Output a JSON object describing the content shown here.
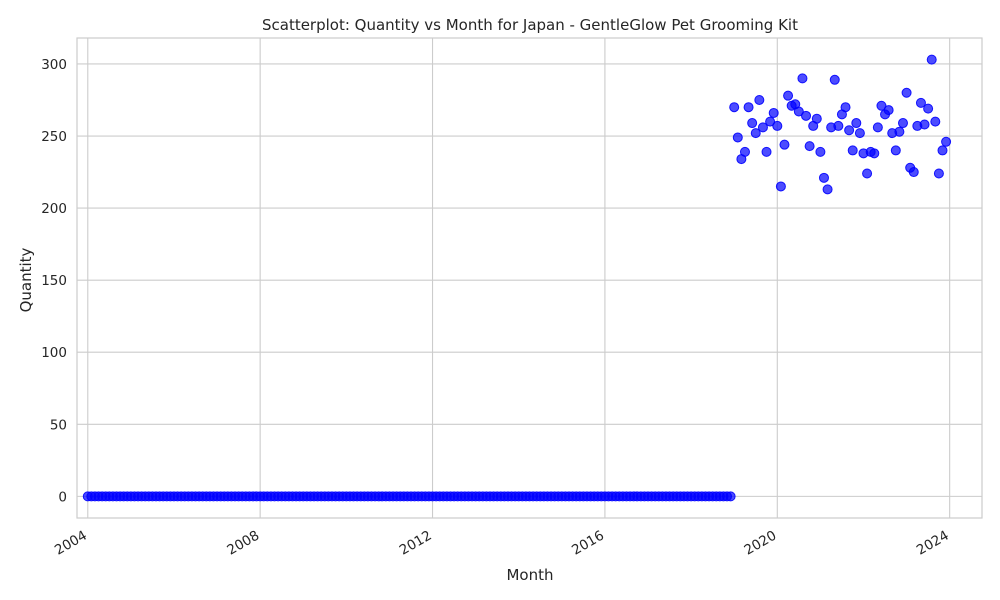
{
  "chart_data": {
    "type": "scatter",
    "title": "Scatterplot: Quantity vs Month for Japan - GentleGlow Pet Grooming Kit",
    "xlabel": "Month",
    "ylabel": "Quantity",
    "x_ticks": [
      "2004",
      "2008",
      "2012",
      "2016",
      "2020",
      "2024"
    ],
    "y_ticks": [
      "0",
      "50",
      "100",
      "150",
      "200",
      "250",
      "300"
    ],
    "xlim": [
      "2003-10",
      "2024-10"
    ],
    "ylim": [
      -15,
      318
    ],
    "grid": true,
    "marker_color": "#0000ff",
    "zero_period": {
      "start": "2004-01",
      "end": "2018-12",
      "value": 0
    },
    "points": [
      {
        "x": "2019-01",
        "y": 270
      },
      {
        "x": "2019-02",
        "y": 249
      },
      {
        "x": "2019-03",
        "y": 234
      },
      {
        "x": "2019-04",
        "y": 239
      },
      {
        "x": "2019-05",
        "y": 270
      },
      {
        "x": "2019-06",
        "y": 259
      },
      {
        "x": "2019-07",
        "y": 252
      },
      {
        "x": "2019-08",
        "y": 275
      },
      {
        "x": "2019-09",
        "y": 256
      },
      {
        "x": "2019-10",
        "y": 239
      },
      {
        "x": "2019-11",
        "y": 260
      },
      {
        "x": "2019-12",
        "y": 266
      },
      {
        "x": "2020-01",
        "y": 257
      },
      {
        "x": "2020-02",
        "y": 215
      },
      {
        "x": "2020-03",
        "y": 244
      },
      {
        "x": "2020-04",
        "y": 278
      },
      {
        "x": "2020-05",
        "y": 271
      },
      {
        "x": "2020-06",
        "y": 272
      },
      {
        "x": "2020-07",
        "y": 267
      },
      {
        "x": "2020-08",
        "y": 290
      },
      {
        "x": "2020-09",
        "y": 264
      },
      {
        "x": "2020-10",
        "y": 243
      },
      {
        "x": "2020-11",
        "y": 257
      },
      {
        "x": "2020-12",
        "y": 262
      },
      {
        "x": "2021-01",
        "y": 239
      },
      {
        "x": "2021-02",
        "y": 221
      },
      {
        "x": "2021-03",
        "y": 213
      },
      {
        "x": "2021-04",
        "y": 256
      },
      {
        "x": "2021-05",
        "y": 289
      },
      {
        "x": "2021-06",
        "y": 257
      },
      {
        "x": "2021-07",
        "y": 265
      },
      {
        "x": "2021-08",
        "y": 270
      },
      {
        "x": "2021-09",
        "y": 254
      },
      {
        "x": "2021-10",
        "y": 240
      },
      {
        "x": "2021-11",
        "y": 259
      },
      {
        "x": "2021-12",
        "y": 252
      },
      {
        "x": "2022-01",
        "y": 238
      },
      {
        "x": "2022-02",
        "y": 224
      },
      {
        "x": "2022-03",
        "y": 239
      },
      {
        "x": "2022-04",
        "y": 238
      },
      {
        "x": "2022-05",
        "y": 256
      },
      {
        "x": "2022-06",
        "y": 271
      },
      {
        "x": "2022-07",
        "y": 265
      },
      {
        "x": "2022-08",
        "y": 268
      },
      {
        "x": "2022-09",
        "y": 252
      },
      {
        "x": "2022-10",
        "y": 240
      },
      {
        "x": "2022-11",
        "y": 253
      },
      {
        "x": "2022-12",
        "y": 259
      },
      {
        "x": "2023-01",
        "y": 280
      },
      {
        "x": "2023-02",
        "y": 228
      },
      {
        "x": "2023-03",
        "y": 225
      },
      {
        "x": "2023-04",
        "y": 257
      },
      {
        "x": "2023-05",
        "y": 273
      },
      {
        "x": "2023-06",
        "y": 258
      },
      {
        "x": "2023-07",
        "y": 269
      },
      {
        "x": "2023-08",
        "y": 303
      },
      {
        "x": "2023-09",
        "y": 260
      },
      {
        "x": "2023-10",
        "y": 224
      },
      {
        "x": "2023-11",
        "y": 240
      },
      {
        "x": "2023-12",
        "y": 246
      }
    ]
  }
}
